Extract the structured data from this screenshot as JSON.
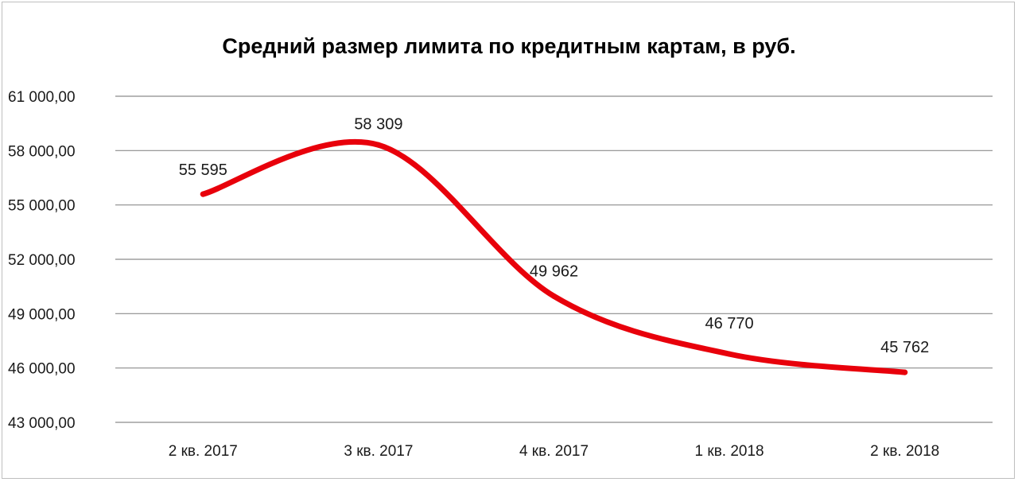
{
  "chart_data": {
    "type": "line",
    "title": "Средний размер лимита по кредитным картам, в руб.",
    "xlabel": "",
    "ylabel": "",
    "categories": [
      "2 кв. 2017",
      "3 кв. 2017",
      "4 кв. 2017",
      "1 кв. 2018",
      "2 кв. 2018"
    ],
    "series": [
      {
        "values": [
          55595,
          58309,
          49962,
          46770,
          45762
        ],
        "data_labels": [
          "55 595",
          "58 309",
          "49 962",
          "46 770",
          "45 762"
        ],
        "color": "#e8000b",
        "smooth": true
      }
    ],
    "ylim": [
      43000,
      61000
    ],
    "yticks": [
      43000,
      46000,
      49000,
      52000,
      55000,
      58000,
      61000
    ],
    "ytick_labels": [
      "43 000,00",
      "46 000,00",
      "49 000,00",
      "52 000,00",
      "55 000,00",
      "58 000,00",
      "61 000,00"
    ],
    "grid": true,
    "legend": "none"
  }
}
